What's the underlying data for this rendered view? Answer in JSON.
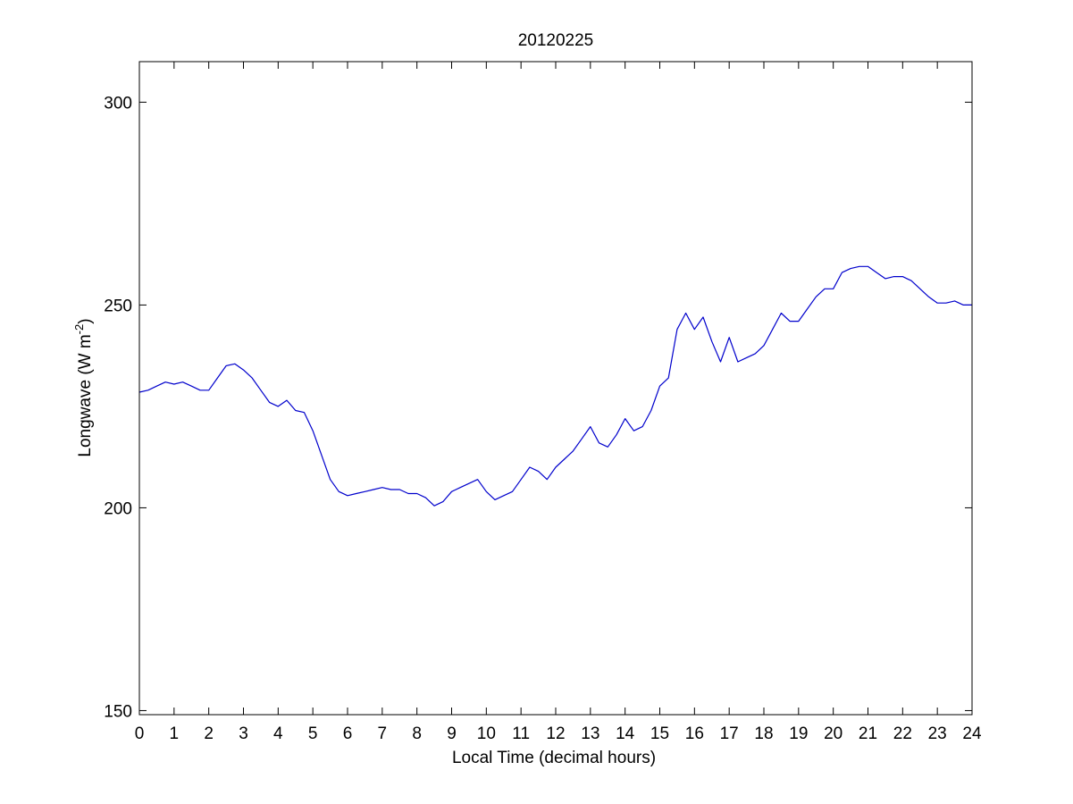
{
  "chart_data": {
    "type": "line",
    "title": "20120225",
    "xlabel": "Local Time (decimal hours)",
    "ylabel_main": "Longwave (W m",
    "ylabel_sup": "-2",
    "ylabel_tail": ")",
    "xlim": [
      0,
      24
    ],
    "ylim": [
      149,
      310
    ],
    "xticks": [
      0,
      1,
      2,
      3,
      4,
      5,
      6,
      7,
      8,
      9,
      10,
      11,
      12,
      13,
      14,
      15,
      16,
      17,
      18,
      19,
      20,
      21,
      22,
      23,
      24
    ],
    "yticks": [
      150,
      200,
      250,
      300
    ],
    "grid": false,
    "line_color": "#0000cc",
    "series": [
      {
        "x": [
          0,
          0.25,
          0.5,
          0.75,
          1,
          1.25,
          1.5,
          1.75,
          2,
          2.25,
          2.5,
          2.75,
          3,
          3.25,
          3.5,
          3.75,
          4,
          4.25,
          4.5,
          4.75,
          5,
          5.25,
          5.5,
          5.75,
          6,
          6.25,
          6.5,
          6.75,
          7,
          7.25,
          7.5,
          7.75,
          8,
          8.25,
          8.5,
          8.75,
          9,
          9.25,
          9.5,
          9.75,
          10,
          10.25,
          10.5,
          10.75,
          11,
          11.25,
          11.5,
          11.75,
          12,
          12.25,
          12.5,
          12.75,
          13,
          13.25,
          13.5,
          13.75,
          14,
          14.25,
          14.5,
          14.75,
          15,
          15.25,
          15.5,
          15.75,
          16,
          16.25,
          16.5,
          16.75,
          17,
          17.25,
          17.5,
          17.75,
          18,
          18.25,
          18.5,
          18.75,
          19,
          19.25,
          19.5,
          19.75,
          20,
          20.25,
          20.5,
          20.75,
          21,
          21.25,
          21.5,
          21.75,
          22,
          22.25,
          22.5,
          22.75,
          23,
          23.25,
          23.5,
          23.75,
          24
        ],
        "y": [
          228.5,
          229,
          230,
          231,
          230.5,
          231,
          230,
          229,
          229,
          232,
          235,
          235.5,
          234,
          232,
          229,
          226,
          225,
          226.5,
          224,
          223.5,
          219,
          213,
          207,
          204,
          203,
          203.5,
          204,
          204.5,
          205,
          204.5,
          204.5,
          203.5,
          203.5,
          202.5,
          200.5,
          201.5,
          204,
          205,
          206,
          207,
          204,
          202,
          203,
          204,
          207,
          210,
          209,
          207,
          210,
          212,
          214,
          217,
          220,
          216,
          215,
          218,
          222,
          219,
          220,
          224,
          230,
          232,
          244,
          248,
          244,
          247,
          241,
          236,
          242,
          236,
          237,
          238,
          240,
          244,
          248,
          246,
          246,
          249,
          252,
          254,
          254,
          258,
          259,
          259.5,
          259.5,
          258,
          256.5,
          257,
          257,
          256,
          254,
          252,
          250.5,
          250.5,
          251,
          250,
          250
        ]
      }
    ]
  }
}
